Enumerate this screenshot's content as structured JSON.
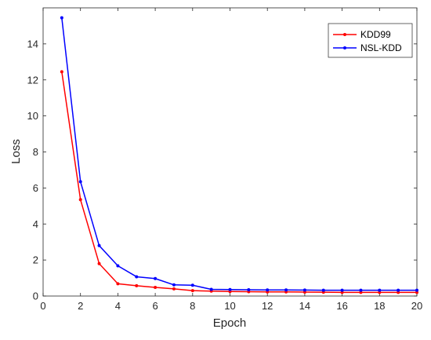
{
  "chart_data": {
    "type": "line",
    "title": "",
    "xlabel": "Epoch",
    "ylabel": "Loss",
    "xlim": [
      0,
      20
    ],
    "ylim": [
      0,
      16
    ],
    "xticks": [
      "0",
      "2",
      "4",
      "6",
      "8",
      "10",
      "12",
      "14",
      "16",
      "18",
      "20"
    ],
    "yticks": [
      "0",
      "2",
      "4",
      "6",
      "8",
      "10",
      "12",
      "14"
    ],
    "grid": false,
    "legend_position": "top-right",
    "x": [
      1,
      2,
      3,
      4,
      5,
      6,
      7,
      8,
      9,
      10,
      11,
      12,
      13,
      14,
      15,
      16,
      17,
      18,
      19,
      20
    ],
    "series": [
      {
        "name": "KDD99",
        "color": "#ff0000",
        "values": [
          12.45,
          5.35,
          1.8,
          0.68,
          0.57,
          0.48,
          0.4,
          0.3,
          0.27,
          0.25,
          0.24,
          0.23,
          0.23,
          0.22,
          0.21,
          0.2,
          0.2,
          0.2,
          0.2,
          0.2
        ]
      },
      {
        "name": "NSL-KDD",
        "color": "#0000ff",
        "values": [
          15.45,
          6.35,
          2.8,
          1.68,
          1.07,
          0.97,
          0.62,
          0.6,
          0.37,
          0.36,
          0.35,
          0.34,
          0.34,
          0.33,
          0.32,
          0.32,
          0.32,
          0.32,
          0.32,
          0.32
        ]
      }
    ]
  }
}
